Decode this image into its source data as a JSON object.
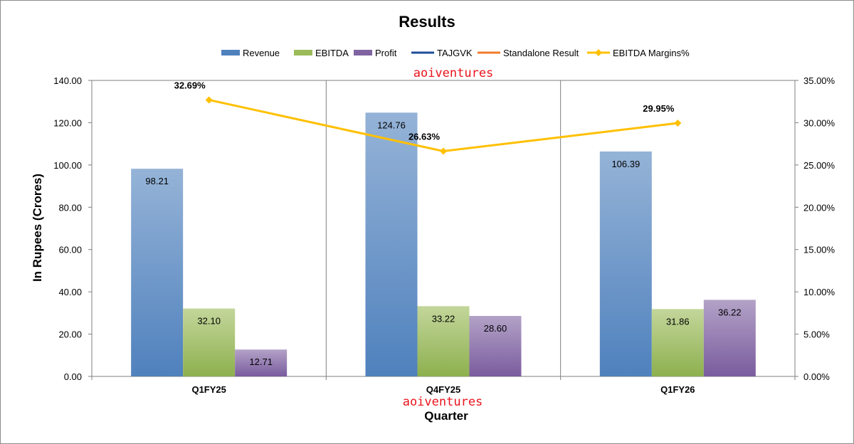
{
  "chart_data": {
    "type": "bar",
    "title": "Results",
    "xlabel": "Quarter",
    "ylabel": "In Rupees (Crores)",
    "y2label": "",
    "categories": [
      "Q1FY25",
      "Q4FY25",
      "Q1FY26"
    ],
    "ylim": [
      0,
      140
    ],
    "y_ticks": [
      "0.00",
      "20.00",
      "40.00",
      "60.00",
      "80.00",
      "100.00",
      "120.00",
      "140.00"
    ],
    "y2lim": [
      0,
      35
    ],
    "y2_ticks": [
      "0.00%",
      "5.00%",
      "10.00%",
      "15.00%",
      "20.00%",
      "25.00%",
      "30.00%",
      "35.00%"
    ],
    "series": [
      {
        "name": "Revenue",
        "kind": "bar",
        "values": [
          98.21,
          124.76,
          106.39
        ],
        "labels": [
          "98.21",
          "124.76",
          "106.39"
        ],
        "color": "#4F81BD"
      },
      {
        "name": "EBITDA",
        "kind": "bar",
        "values": [
          32.1,
          33.22,
          31.86
        ],
        "labels": [
          "32.10",
          "33.22",
          "31.86"
        ],
        "color": "#9BBB59"
      },
      {
        "name": "Profit",
        "kind": "bar",
        "values": [
          12.71,
          28.6,
          36.22
        ],
        "labels": [
          "12.71",
          "28.60",
          "36.22"
        ],
        "color": "#8064A2"
      },
      {
        "name": "TAJGVK",
        "kind": "legend-line",
        "color": "#1F4E9A"
      },
      {
        "name": "Standalone Result",
        "kind": "legend-line",
        "color": "#F07C2A"
      },
      {
        "name": "EBITDA Margins%",
        "kind": "line",
        "axis": "secondary",
        "values": [
          32.69,
          26.63,
          29.95
        ],
        "labels": [
          "32.69%",
          "26.63%",
          "29.95%"
        ],
        "color": "#FFC000"
      }
    ],
    "legend": "top",
    "grid": "vertical-category-separators",
    "watermarks": [
      "aoiventures",
      "aoiventures"
    ]
  }
}
